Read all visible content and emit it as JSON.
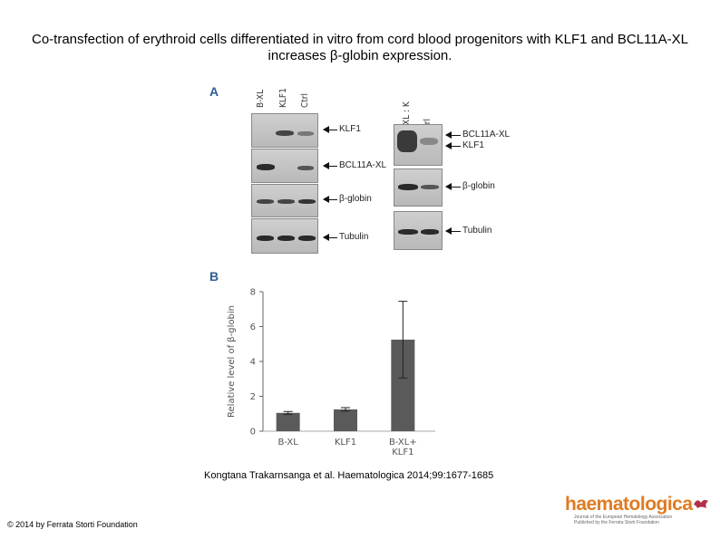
{
  "title": "Co-transfection of erythroid cells differentiated in vitro from cord blood progenitors with KLF1 and BCL11A-XL increases β-globin expression.",
  "panel_a": {
    "letter": "A",
    "left_lanes": [
      "B-XL",
      "KLF1",
      "Ctrl"
    ],
    "right_lanes": [
      "B-XL : K",
      "Ctrl"
    ],
    "left_bands": [
      "KLF1",
      "BCL11A-XL",
      "β-globin",
      "Tubulin"
    ],
    "right_bands": [
      "BCL11A-XL",
      "KLF1",
      "β-globin",
      "Tubulin"
    ]
  },
  "panel_b": {
    "letter": "B"
  },
  "chart_data": {
    "type": "bar",
    "categories": [
      "B-XL",
      "KLF1",
      "B-XL+\nKLF1"
    ],
    "category_lines": [
      [
        "B-XL"
      ],
      [
        "KLF1"
      ],
      [
        "B-XL+",
        "KLF1"
      ]
    ],
    "values": [
      1.05,
      1.25,
      5.25
    ],
    "errors": [
      0.08,
      0.1,
      2.2
    ],
    "ylabel": "Relative level of β-globin",
    "ylim": [
      0,
      8
    ],
    "yticks": [
      "0",
      "2",
      "4",
      "6",
      "8"
    ],
    "bar_color": "#5a5a5a",
    "grid": false
  },
  "citation": "Kongtana Trakarnsanga et al. Haematologica 2014;99:1677-1685",
  "copyright": "© 2014 by Ferrata Storti Foundation",
  "logo": {
    "name": "haematologica",
    "subtitle_line1": "Journal of the European Hematology Association",
    "subtitle_line2": "Published by the Ferrata Storti Foundation"
  }
}
